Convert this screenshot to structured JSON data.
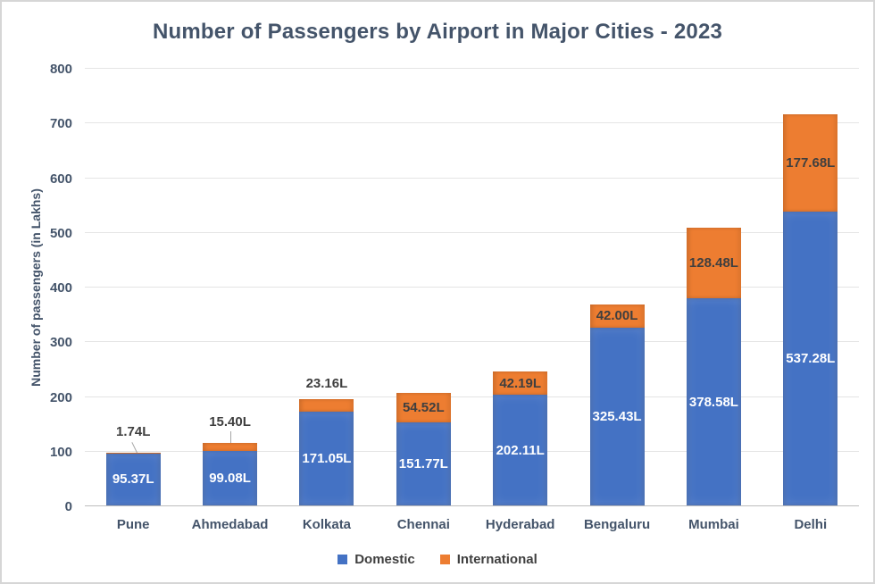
{
  "chart_data": {
    "type": "bar",
    "stacked": true,
    "title": "Number of Passengers by Airport in Major Cities - 2023",
    "xlabel": "",
    "ylabel": "Number of passengers (in Lakhs)",
    "categories": [
      "Pune",
      "Ahmedabad",
      "Kolkata",
      "Chennai",
      "Hyderabad",
      "Bengaluru",
      "Mumbai",
      "Delhi"
    ],
    "series": [
      {
        "name": "Domestic",
        "color": "#4472C4",
        "values": [
          95.37,
          99.08,
          171.05,
          151.77,
          202.11,
          325.43,
          378.58,
          537.28
        ],
        "labels": [
          "95.37L",
          "99.08L",
          "171.05L",
          "151.77L",
          "202.11L",
          "325.43L",
          "378.58L",
          "537.28L"
        ]
      },
      {
        "name": "International",
        "color": "#ED7D31",
        "values": [
          1.74,
          15.4,
          23.16,
          54.52,
          42.19,
          42.0,
          128.48,
          177.68
        ],
        "labels": [
          "1.74L",
          "15.40L",
          "23.16L",
          "54.52L",
          "42.19L",
          "42.00L",
          "128.48L",
          "177.68L"
        ],
        "label_positions": [
          "callout-slant",
          "callout",
          "above",
          "inside",
          "inside",
          "inside",
          "inside",
          "inside"
        ]
      }
    ],
    "ylim": [
      0,
      800
    ],
    "yticks": [
      0,
      100,
      200,
      300,
      400,
      500,
      600,
      700,
      800
    ],
    "grid": true,
    "legend_position": "bottom"
  },
  "colors": {
    "domestic": "#4472C4",
    "international": "#ED7D31",
    "title_text": "#44546A",
    "axis_text": "#44546A",
    "data_label_dark": "#3F3F3F",
    "data_label_light": "#FFFFFF",
    "gridline": "#E4E4E4",
    "baseline": "#BDBDBD",
    "leader_line": "#A6A6A6",
    "frame_border": "#D6D6D6",
    "background": "#FFFFFF"
  }
}
